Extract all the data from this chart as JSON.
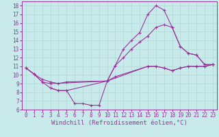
{
  "title": "",
  "xlabel": "Windchill (Refroidissement éolien,°C)",
  "background_color": "#c8eaea",
  "grid_color": "#b0d8d8",
  "line_color": "#993399",
  "xlim": [
    -0.5,
    23.5
  ],
  "ylim": [
    6,
    18.5
  ],
  "xticks": [
    0,
    1,
    2,
    3,
    4,
    5,
    6,
    7,
    8,
    9,
    10,
    11,
    12,
    13,
    14,
    15,
    16,
    17,
    18,
    19,
    20,
    21,
    22,
    23
  ],
  "yticks": [
    6,
    7,
    8,
    9,
    10,
    11,
    12,
    13,
    14,
    15,
    16,
    17,
    18
  ],
  "lines": [
    {
      "x": [
        0,
        1,
        2,
        3,
        10,
        11,
        12,
        13,
        14,
        15,
        16,
        17,
        18,
        19,
        20,
        21,
        22,
        23
      ],
      "y": [
        10.8,
        10.1,
        9.2,
        9.0,
        9.3,
        11.1,
        13.0,
        14.0,
        14.9,
        17.0,
        18.0,
        17.5,
        15.5,
        13.3,
        12.5,
        12.3,
        11.2,
        11.2
      ]
    },
    {
      "x": [
        0,
        1,
        2,
        3,
        4,
        5,
        10,
        11,
        12,
        13,
        14,
        15,
        16,
        17,
        18,
        19,
        20,
        21,
        22,
        23
      ],
      "y": [
        10.8,
        10.1,
        9.2,
        8.5,
        8.2,
        8.2,
        9.3,
        11.1,
        12.0,
        13.0,
        13.8,
        14.5,
        15.5,
        15.8,
        15.5,
        13.3,
        12.5,
        12.3,
        11.2,
        11.2
      ]
    },
    {
      "x": [
        3,
        4,
        5,
        6,
        7,
        8,
        9,
        10,
        15,
        16,
        17,
        18,
        19,
        20,
        21,
        22,
        23
      ],
      "y": [
        8.5,
        8.2,
        8.2,
        6.7,
        6.7,
        6.5,
        6.5,
        9.3,
        11.0,
        11.0,
        10.8,
        10.5,
        10.8,
        11.0,
        11.0,
        11.0,
        11.2
      ]
    },
    {
      "x": [
        0,
        1,
        2,
        3,
        4,
        5,
        10,
        11,
        15,
        16,
        17,
        18,
        19,
        20,
        21,
        22,
        23
      ],
      "y": [
        10.8,
        10.1,
        9.5,
        9.2,
        9.0,
        9.2,
        9.3,
        9.8,
        11.0,
        11.0,
        10.8,
        10.5,
        10.8,
        11.0,
        11.0,
        11.0,
        11.2
      ]
    }
  ],
  "font_family": "monospace",
  "tick_fontsize": 5.5,
  "label_fontsize": 6.5
}
